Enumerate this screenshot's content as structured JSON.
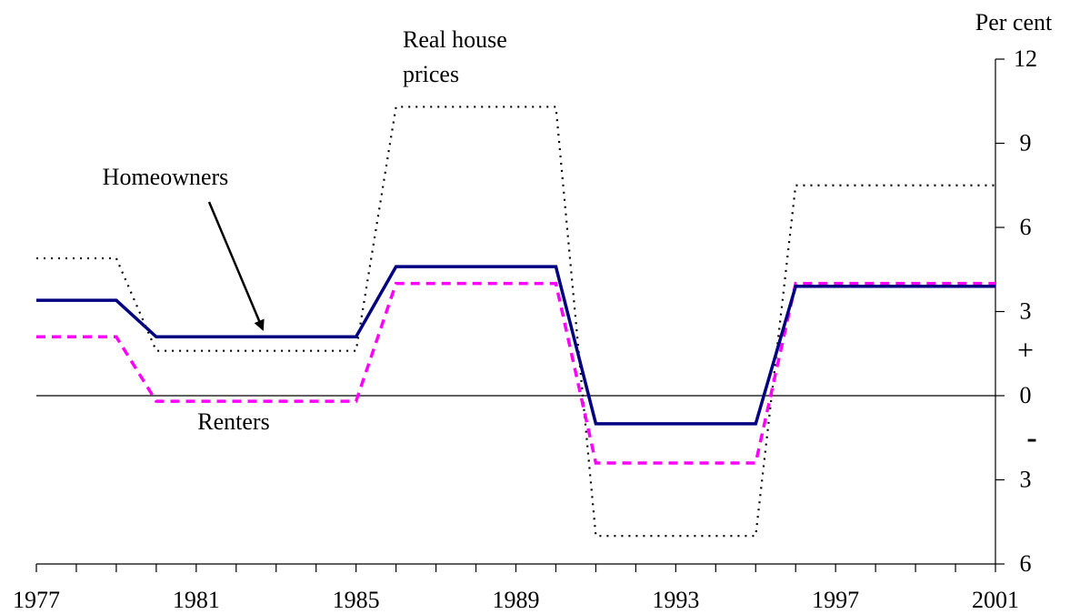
{
  "chart_data": {
    "type": "line",
    "y_axis_label": "Per cent",
    "annotations": [
      "Real house",
      "prices",
      "+",
      "-"
    ],
    "x": [
      1977,
      1978,
      1979,
      1980,
      1981,
      1982,
      1983,
      1984,
      1985,
      1986,
      1987,
      1988,
      1989,
      1990,
      1991,
      1992,
      1993,
      1994,
      1995,
      1996,
      1997,
      1998,
      1999,
      2000,
      2001
    ],
    "series": [
      {
        "name": "Homeowners",
        "color": "#000080",
        "style": "solid",
        "values": [
          3.4,
          3.4,
          3.4,
          2.1,
          2.1,
          2.1,
          2.1,
          2.1,
          2.1,
          4.6,
          4.6,
          4.6,
          4.6,
          4.6,
          -1.0,
          -1.0,
          -1.0,
          -1.0,
          -1.0,
          3.9,
          3.9,
          3.9,
          3.9,
          3.9,
          3.9
        ]
      },
      {
        "name": "Renters",
        "color": "#ff00ff",
        "style": "dashed",
        "values": [
          2.1,
          2.1,
          2.1,
          -0.2,
          -0.2,
          -0.2,
          -0.2,
          -0.2,
          -0.2,
          4.0,
          4.0,
          4.0,
          4.0,
          4.0,
          -2.4,
          -2.4,
          -2.4,
          -2.4,
          -2.4,
          4.0,
          4.0,
          4.0,
          4.0,
          4.0,
          4.0
        ]
      },
      {
        "name": "Real house prices",
        "color": "#000000",
        "style": "dotted",
        "values": [
          4.9,
          4.9,
          4.9,
          1.6,
          1.6,
          1.6,
          1.6,
          1.6,
          1.6,
          10.3,
          10.3,
          10.3,
          10.3,
          10.3,
          -5.0,
          -5.0,
          -5.0,
          -5.0,
          -5.0,
          7.5,
          7.5,
          7.5,
          7.5,
          7.5,
          7.5
        ]
      }
    ],
    "xlim": [
      1977,
      2001
    ],
    "xticks": [
      1977,
      1981,
      1985,
      1989,
      1993,
      1997,
      2001
    ],
    "xminorticks": [
      1977,
      1978,
      1979,
      1980,
      1981,
      1982,
      1983,
      1984,
      1985,
      1986,
      1987,
      1988,
      1989,
      1990,
      1991,
      1992,
      1993,
      1994,
      1995,
      1996,
      1997,
      1998,
      1999,
      2000,
      2001
    ],
    "ylim": [
      -6,
      12
    ],
    "yticks": [
      {
        "value": -6,
        "label": "6"
      },
      {
        "value": -3,
        "label": "3"
      },
      0,
      3,
      6,
      9,
      12
    ],
    "y_axis_side": "right"
  }
}
